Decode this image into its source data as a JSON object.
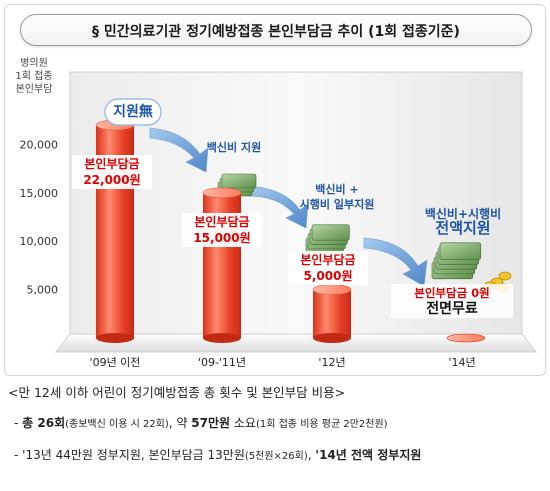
{
  "title": "§ 민간의료기관 정기예방접종 본인부담금 추이 (1회 접종기준)",
  "chart_data": {
    "type": "bar",
    "ylabel": [
      "병의원",
      "1회 접종",
      "본인부담"
    ],
    "yticks": [
      5000,
      10000,
      15000,
      20000
    ],
    "ylim": [
      0,
      25000
    ],
    "categories": [
      "'09년 이전",
      "'09-'11년",
      "'12년",
      "'14년"
    ],
    "values": [
      22000,
      15000,
      5000,
      0
    ],
    "bar_labels": [
      [
        "본인부담금",
        "22,000원"
      ],
      [
        "본인부담금",
        "15,000원"
      ],
      [
        "본인부담금",
        "5,000원"
      ],
      [
        "본인부담금 0원",
        "전면무료"
      ]
    ],
    "annotations": [
      [
        "지원無"
      ],
      [
        "백신비 지원"
      ],
      [
        "백신비 +",
        "시행비 일부지원"
      ],
      [
        "백신비+시행비",
        "전액지원"
      ]
    ],
    "colors": {
      "bar": "#e8432a",
      "bar_light": "#ff9b82",
      "arrow": "#4a86c8",
      "annotation_text": "#1f55a8",
      "label_red": "#e00000"
    }
  },
  "info": {
    "line0": "<만 12세 이하 어린이 정기예방접종 총 횟수 및 본인부담 비용>",
    "line1": {
      "a": "- ",
      "b": "총 26회",
      "c": "(종보백신 이용 시 22회)",
      "d": ", 약 ",
      "e": "57만원",
      "f": " 소요",
      "g": "(1회 접종 비용 평균 2만2천원)"
    },
    "line2": {
      "a": "- '13년 44만원 정부지원, 본인부담금 13만원",
      "b": "(5천원×26회)",
      "c": ", ",
      "d": "'14년 전액 정부지원"
    }
  }
}
